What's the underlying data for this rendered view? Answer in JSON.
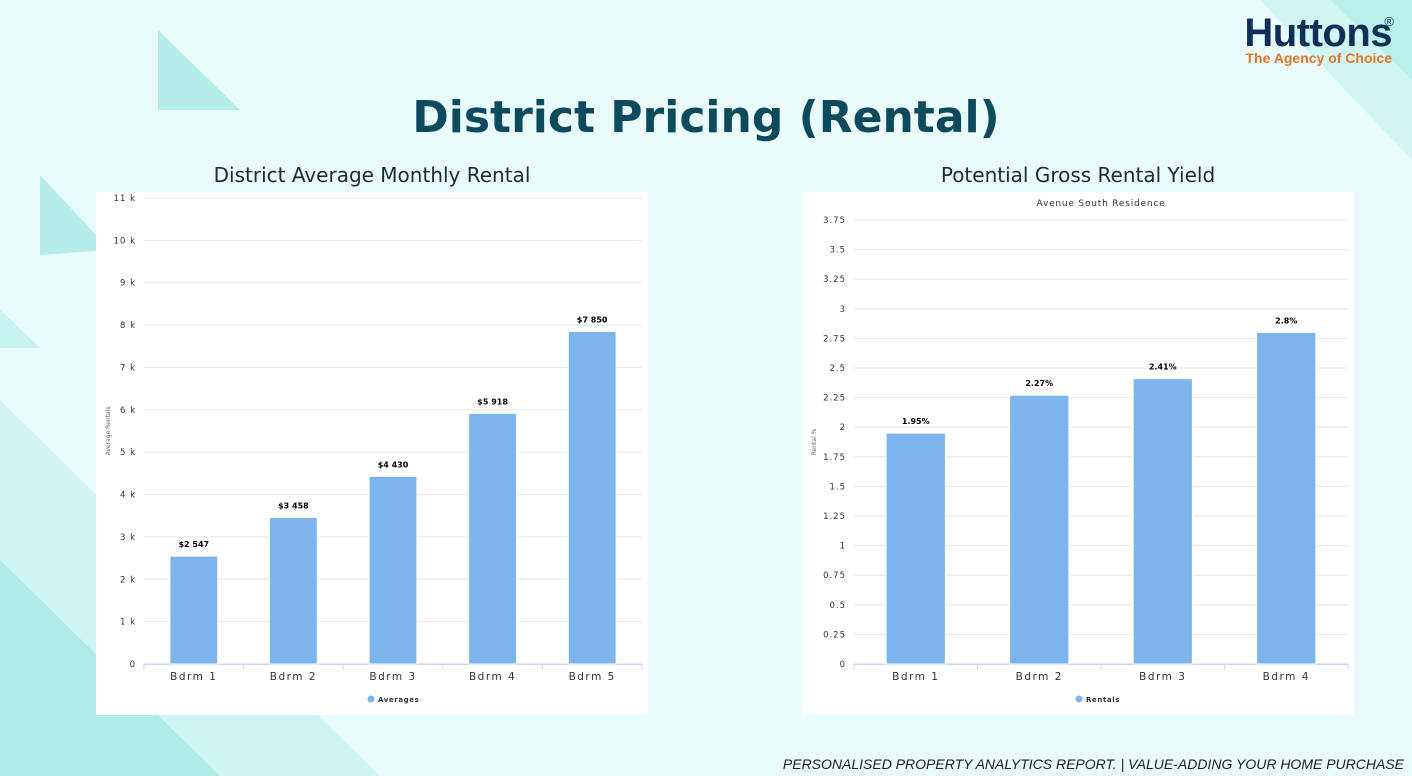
{
  "brand": {
    "name": "Huttons",
    "registered_mark": "®",
    "tagline": "The Agency of Choice"
  },
  "page_title": "District Pricing (Rental)",
  "footer": "PERSONALISED PROPERTY ANALYTICS REPORT. | VALUE-ADDING YOUR HOME PURCHASE",
  "colors": {
    "bar": "#7cb5ec",
    "title": "#0d4a5e",
    "brand_navy": "#0f2f56",
    "brand_orange": "#e8742a",
    "background": "#e9fbfb"
  },
  "chart_data": [
    {
      "type": "bar",
      "heading": "District Average Monthly Rental",
      "title": "",
      "ylabel": "Average Rentals",
      "xlabel": "",
      "categories": [
        "Bdrm 1",
        "Bdrm 2",
        "Bdrm 3",
        "Bdrm 4",
        "Bdrm 5"
      ],
      "series": [
        {
          "name": "Averages",
          "values": [
            2547,
            3458,
            4430,
            5918,
            7850
          ],
          "labels": [
            "$2 547",
            "$3 458",
            "$4 430",
            "$5 918",
            "$7 850"
          ]
        }
      ],
      "ylim": [
        0,
        11000
      ],
      "yticks": [
        0,
        1000,
        2000,
        3000,
        4000,
        5000,
        6000,
        7000,
        8000,
        9000,
        10000,
        11000
      ],
      "ytick_labels": [
        "0",
        "1 k",
        "2 k",
        "3 k",
        "4 k",
        "5 k",
        "6 k",
        "7 k",
        "8 k",
        "9 k",
        "10 k",
        "11 k"
      ],
      "grid": true,
      "legend": "bottom-center"
    },
    {
      "type": "bar",
      "heading": "Potential Gross Rental Yield",
      "title": "Avenue South Residence",
      "ylabel": "Rental %",
      "xlabel": "",
      "categories": [
        "Bdrm 1",
        "Bdrm 2",
        "Bdrm 3",
        "Bdrm 4"
      ],
      "series": [
        {
          "name": "Rentals",
          "values": [
            1.95,
            2.27,
            2.41,
            2.8
          ],
          "labels": [
            "1.95%",
            "2.27%",
            "2.41%",
            "2.8%"
          ]
        }
      ],
      "ylim": [
        0,
        3.75
      ],
      "yticks": [
        0,
        0.25,
        0.5,
        0.75,
        1,
        1.25,
        1.5,
        1.75,
        2,
        2.25,
        2.5,
        2.75,
        3,
        3.25,
        3.5,
        3.75
      ],
      "ytick_labels": [
        "0",
        "0.25",
        "0.5",
        "0.75",
        "1",
        "1.25",
        "1.5",
        "1.75",
        "2",
        "2.25",
        "2.5",
        "2.75",
        "3",
        "3.25",
        "3.5",
        "3.75"
      ],
      "grid": true,
      "legend": "bottom-center"
    }
  ]
}
